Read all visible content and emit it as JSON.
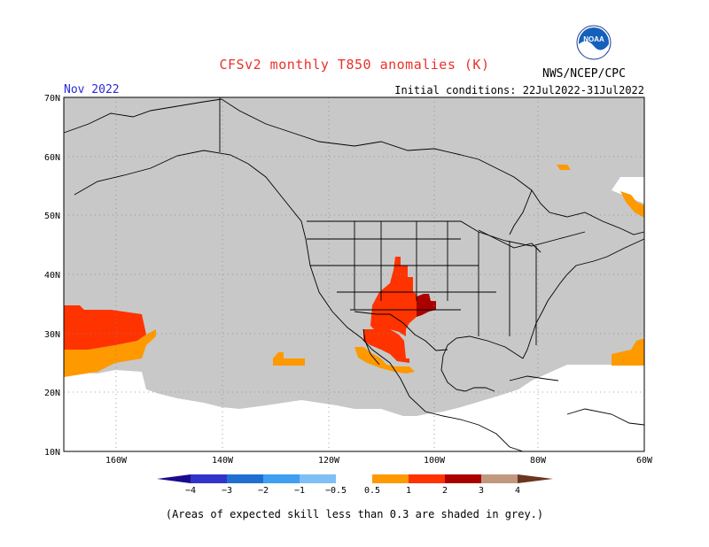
{
  "header": {
    "title": "CFSv2 monthly T850 anomalies (K)",
    "month": "Nov 2022",
    "initial_conditions": "Initial conditions: 22Jul2022-31Jul2022",
    "agency": "NWS/NCEP/CPC",
    "logo_text": "NOAA"
  },
  "map": {
    "lat_labels": [
      "70N",
      "60N",
      "50N",
      "40N",
      "30N",
      "20N",
      "10N"
    ],
    "lon_labels": [
      "160W",
      "140W",
      "120W",
      "100W",
      "80W",
      "60W"
    ],
    "grey_color": "#c8c8c8",
    "anomaly_regions": [
      {
        "name": "pacific-west-warm",
        "level": "1-2",
        "color": "#ff3300"
      },
      {
        "name": "pacific-west-mild",
        "level": "0.5-1",
        "color": "#ff9900"
      },
      {
        "name": "southwest-us-warm",
        "level": "1-2",
        "color": "#ff3300"
      },
      {
        "name": "southern-plains-hot",
        "level": "2-3",
        "color": "#aa0000"
      },
      {
        "name": "mexico-mild",
        "level": "0.5-1",
        "color": "#ff9900"
      },
      {
        "name": "atlantic-mild",
        "level": "0.5-1",
        "color": "#ff9900"
      }
    ]
  },
  "legend": {
    "ticks": [
      "−4",
      "−3",
      "−2",
      "−1",
      "−0.5",
      "0.5",
      "1",
      "2",
      "3",
      "4"
    ],
    "colors": [
      "#1a0a8c",
      "#3333cc",
      "#1f6fd1",
      "#3f9ff0",
      "#7fbff5",
      "#ffffff",
      "#ff9900",
      "#ff3300",
      "#aa0000",
      "#c09880",
      "#6b3520"
    ]
  },
  "footnote": "(Areas of expected skill less than 0.3 are shaded in grey.)"
}
